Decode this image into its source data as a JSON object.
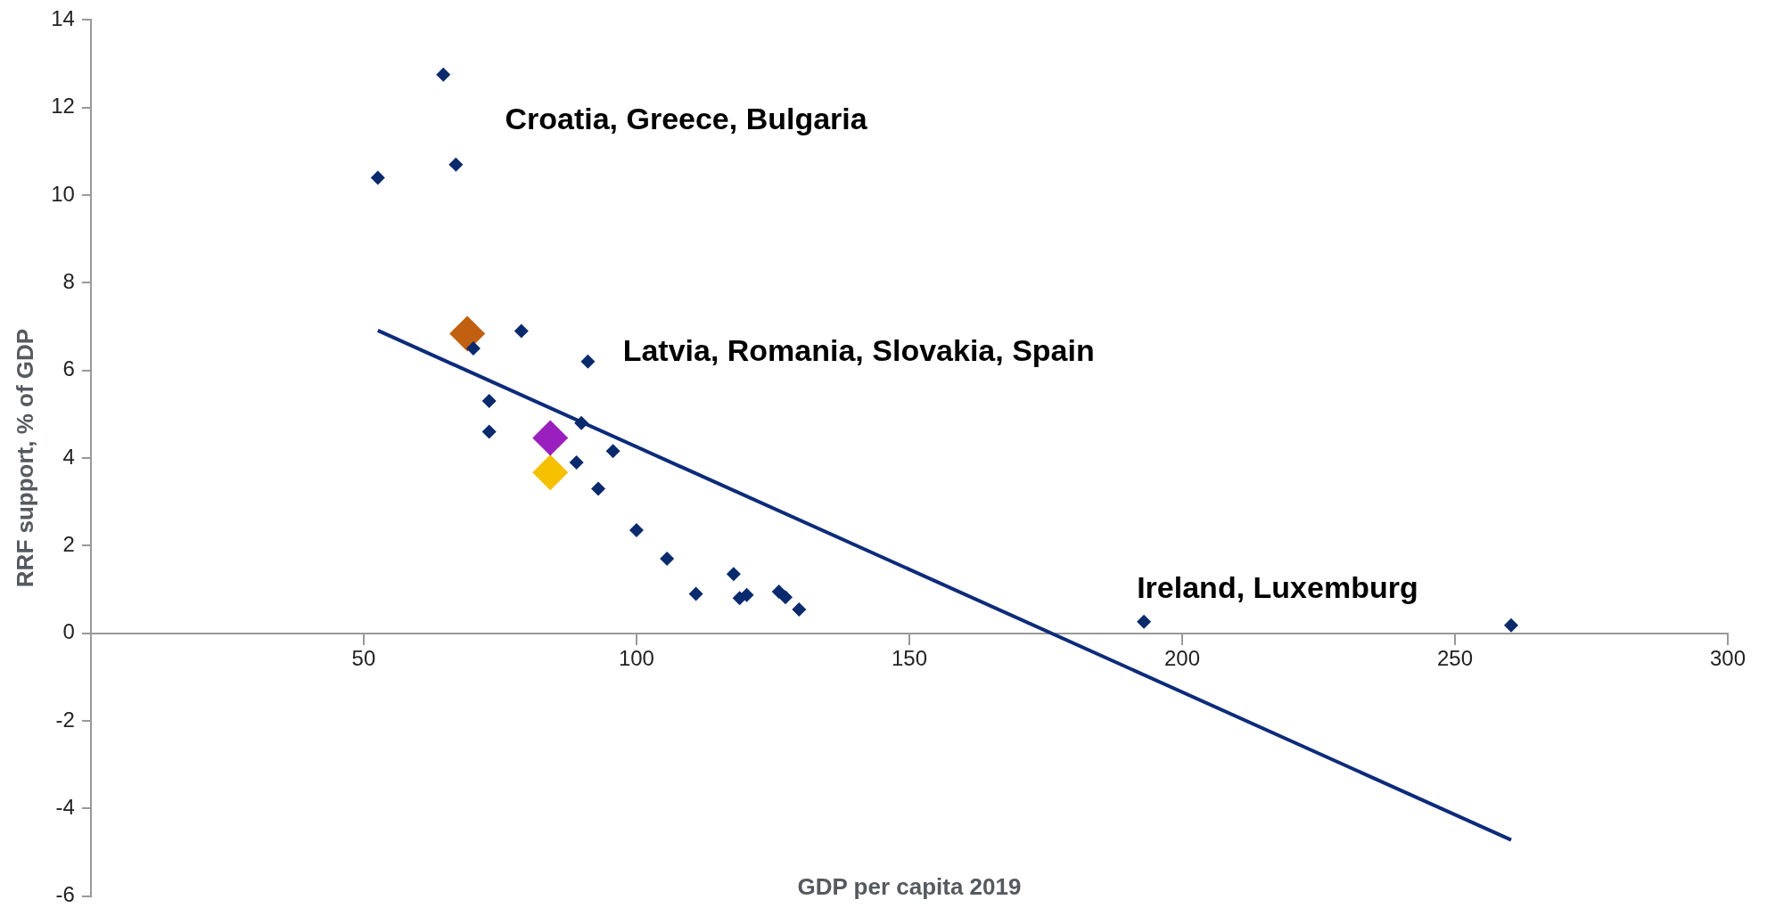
{
  "chart_data": {
    "type": "scatter",
    "xlabel": "GDP per capita 2019",
    "ylabel": "RRF support, % of GDP",
    "xlim": [
      0,
      300
    ],
    "xticks": [
      50,
      100,
      150,
      200,
      250,
      300
    ],
    "ylim": [
      -6,
      14
    ],
    "yticks": [
      -6,
      -4,
      -2,
      0,
      2,
      4,
      6,
      8,
      10,
      12,
      14
    ],
    "grid": false,
    "legend": false,
    "marker": "diamond",
    "series": [
      {
        "color": "#0a2a6e",
        "x": [
          52.6,
          64.6,
          66.9,
          70.1,
          78.9,
          91.1,
          73.0,
          73.0,
          89.9,
          89.0,
          95.7,
          93.0,
          100.0,
          105.6,
          110.9,
          117.8,
          118.9,
          120.2,
          126.1,
          127.3,
          129.8,
          193.0,
          260.3
        ],
        "values": [
          10.4,
          12.75,
          10.7,
          6.5,
          6.9,
          6.2,
          5.3,
          4.6,
          4.8,
          3.9,
          4.16,
          3.3,
          2.35,
          1.7,
          0.9,
          1.35,
          0.8,
          0.87,
          0.95,
          0.82,
          0.54,
          0.26,
          0.18
        ]
      },
      {
        "color": "#c06010",
        "x": [
          69.0
        ],
        "values": [
          6.84
        ]
      },
      {
        "color": "#9b1fbf",
        "x": [
          84.2
        ],
        "values": [
          4.46
        ]
      },
      {
        "color": "#f5c000",
        "x": [
          84.2
        ],
        "values": [
          3.67
        ]
      },
      {
        "type": "line",
        "color": "#0d2b7a",
        "marker": "none",
        "x": [
          52.6,
          260.3
        ],
        "values": [
          6.91,
          -4.72
        ]
      }
    ],
    "annotations": [
      "Croatia, Greece, Bulgaria",
      "Latvia, Romania, Slovakia, Spain",
      "Ireland, Luxemburg"
    ]
  }
}
